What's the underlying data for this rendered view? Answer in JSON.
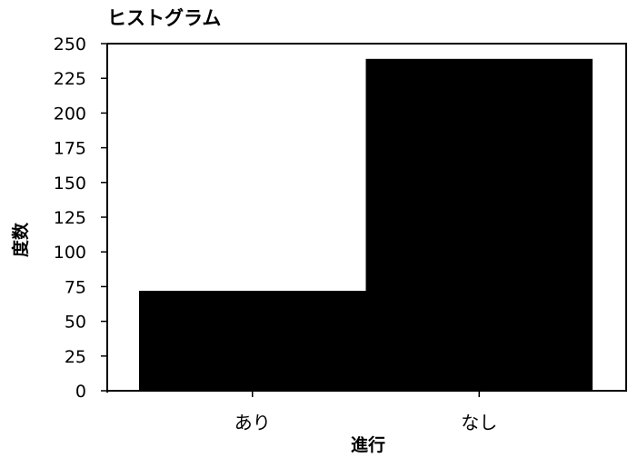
{
  "chart_data": {
    "type": "bar",
    "title": "ヒストグラム",
    "xlabel": "進行",
    "ylabel": "度数",
    "categories": [
      "あり",
      "なし"
    ],
    "values": [
      72,
      239
    ],
    "ylim": [
      0,
      250
    ],
    "yticks": [
      "0",
      "25",
      "50",
      "75",
      "100",
      "125",
      "150",
      "175",
      "200",
      "225",
      "250"
    ],
    "bar_color": "#000000",
    "grid": false
  }
}
